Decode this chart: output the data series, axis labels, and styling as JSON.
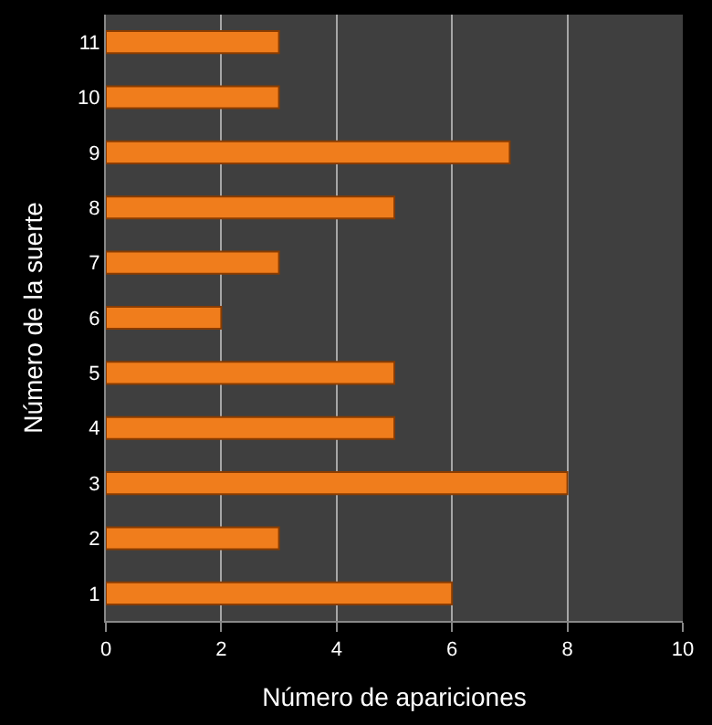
{
  "chart_data": {
    "type": "bar",
    "orientation": "horizontal",
    "xlabel": "Número de apariciones",
    "ylabel": "Número de la suerte",
    "categories": [
      "11",
      "10",
      "9",
      "8",
      "7",
      "6",
      "5",
      "4",
      "3",
      "2",
      "1"
    ],
    "values": [
      3,
      3,
      7,
      5,
      3,
      2,
      5,
      5,
      8,
      3,
      6
    ],
    "color": "#f07d1c",
    "xlim": [
      0,
      10
    ],
    "xticks": [
      0,
      2,
      4,
      6,
      8,
      10
    ],
    "grid": "x"
  }
}
